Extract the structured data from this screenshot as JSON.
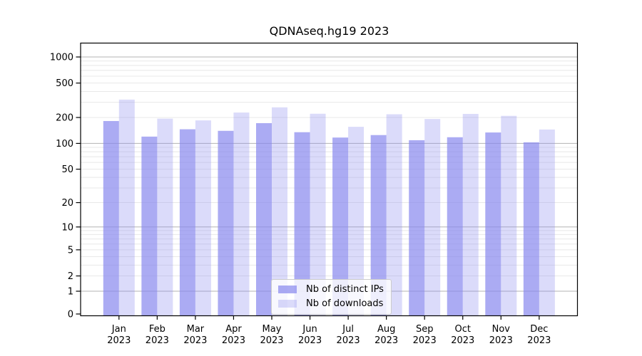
{
  "chart_data": {
    "type": "bar",
    "title": "QDNAseq.hg19 2023",
    "categories": [
      "Jan",
      "Feb",
      "Mar",
      "Apr",
      "May",
      "Jun",
      "Jul",
      "Aug",
      "Sep",
      "Oct",
      "Nov",
      "Dec"
    ],
    "category_year": "2023",
    "series": [
      {
        "name": "Nb of distinct IPs",
        "color": "#8888ee",
        "opacity": 0.7,
        "values": [
          182,
          120,
          146,
          140,
          172,
          135,
          117,
          125,
          109,
          118,
          134,
          103
        ]
      },
      {
        "name": "Nb of downloads",
        "color": "#8888ee",
        "opacity": 0.3,
        "values": [
          322,
          194,
          185,
          228,
          262,
          221,
          156,
          218,
          192,
          220,
          209,
          145
        ]
      }
    ],
    "xlabel": "",
    "ylabel": "",
    "yticks": [
      1000,
      500,
      200,
      100,
      50,
      20,
      10,
      5,
      2,
      1,
      0
    ],
    "ylim": [
      0,
      1400
    ],
    "yscale": "log1p",
    "grid": "major+minor horizontal",
    "legend_position": "lower-center",
    "colors": {
      "bar_base": "#8888ee",
      "major_grid": "#b3b3b3",
      "minor_grid": "#e8e8e8",
      "spine": "#000000",
      "legend_border": "#cccccc"
    }
  }
}
